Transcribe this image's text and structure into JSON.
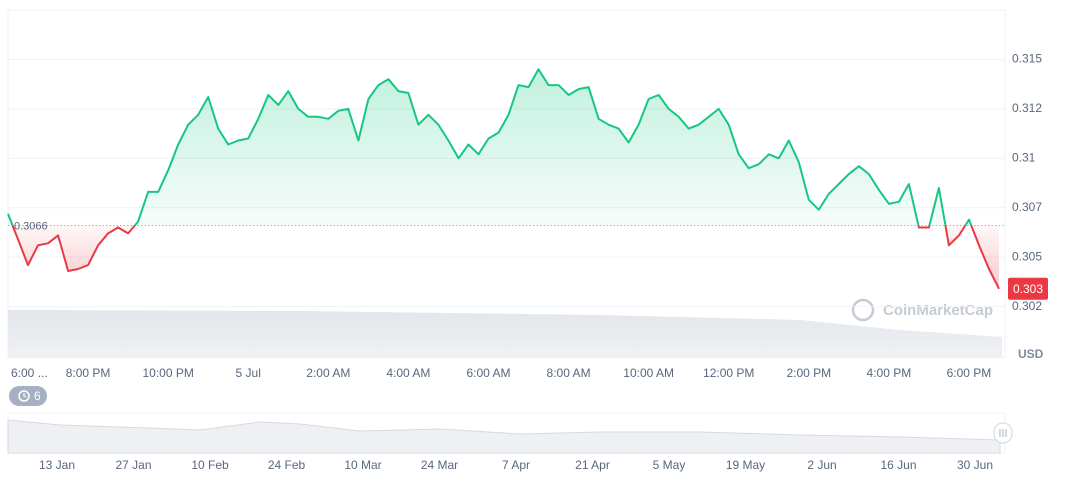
{
  "chart_data": {
    "type": "line",
    "y_unit": "USD",
    "watermark": "CoinMarketCap",
    "events_count": 6,
    "up_color": "#16c784",
    "down_color": "#ea3943",
    "grid": true,
    "baseline": {
      "value": 0.3066,
      "label": "0.3066"
    },
    "current_price": {
      "value": 0.3034,
      "label": "0.303"
    },
    "xlim": [
      0,
      24.9
    ],
    "ylim": [
      0.2999,
      0.3175
    ],
    "xticks": [
      {
        "value": 0,
        "label": "6:00 ..."
      },
      {
        "value": 2,
        "label": "8:00 PM"
      },
      {
        "value": 4,
        "label": "10:00 PM"
      },
      {
        "value": 6,
        "label": "5 Jul"
      },
      {
        "value": 8,
        "label": "2:00 AM"
      },
      {
        "value": 10,
        "label": "4:00 AM"
      },
      {
        "value": 12,
        "label": "6:00 AM"
      },
      {
        "value": 14,
        "label": "8:00 AM"
      },
      {
        "value": 16,
        "label": "10:00 AM"
      },
      {
        "value": 18,
        "label": "12:00 PM"
      },
      {
        "value": 20,
        "label": "2:00 PM"
      },
      {
        "value": 22,
        "label": "4:00 PM"
      },
      {
        "value": 24,
        "label": "6:00 PM"
      }
    ],
    "yticks": [
      {
        "value": 0.3025,
        "label": "0.302"
      },
      0.305,
      {
        "value": 0.3075,
        "label": "0.307"
      },
      0.31,
      {
        "value": 0.3125,
        "label": "0.312"
      },
      0.315
    ],
    "x": [
      0,
      0.25,
      0.5,
      0.75,
      1,
      1.25,
      1.5,
      1.75,
      2,
      2.25,
      2.5,
      2.75,
      3,
      3.25,
      3.5,
      3.75,
      4,
      4.25,
      4.5,
      4.75,
      5,
      5.25,
      5.5,
      5.75,
      6,
      6.25,
      6.5,
      6.75,
      7,
      7.25,
      7.5,
      7.75,
      8,
      8.25,
      8.5,
      8.75,
      9,
      9.25,
      9.5,
      9.75,
      10,
      10.25,
      10.5,
      10.75,
      11,
      11.25,
      11.5,
      11.75,
      12,
      12.25,
      12.5,
      12.75,
      13,
      13.25,
      13.5,
      13.75,
      14,
      14.25,
      14.5,
      14.75,
      15,
      15.25,
      15.5,
      15.75,
      16,
      16.25,
      16.5,
      16.75,
      17,
      17.25,
      17.5,
      17.75,
      18,
      18.25,
      18.5,
      18.75,
      19,
      19.25,
      19.5,
      19.75,
      20,
      20.25,
      20.5,
      20.75,
      21,
      21.25,
      21.5,
      21.75,
      22,
      22.25,
      22.5,
      22.75,
      23,
      23.25,
      23.5,
      23.75,
      24,
      24.25,
      24.5,
      24.75
    ],
    "values": [
      0.3072,
      0.3059,
      0.3046,
      0.3056,
      0.3057,
      0.3061,
      0.3043,
      0.3044,
      0.3046,
      0.3056,
      0.3062,
      0.3065,
      0.3062,
      0.3068,
      0.3083,
      0.3083,
      0.3094,
      0.3107,
      0.3117,
      0.3122,
      0.3131,
      0.3115,
      0.3107,
      0.3109,
      0.311,
      0.312,
      0.3132,
      0.3127,
      0.3134,
      0.3125,
      0.3121,
      0.3121,
      0.312,
      0.3124,
      0.3125,
      0.3109,
      0.313,
      0.3137,
      0.314,
      0.3134,
      0.3133,
      0.3117,
      0.3122,
      0.3117,
      0.3109,
      0.31,
      0.3107,
      0.3102,
      0.311,
      0.3113,
      0.3122,
      0.3137,
      0.3136,
      0.3145,
      0.3137,
      0.3137,
      0.3132,
      0.3135,
      0.3136,
      0.312,
      0.3117,
      0.3115,
      0.3108,
      0.3117,
      0.313,
      0.3132,
      0.3125,
      0.3121,
      0.3115,
      0.3117,
      0.3121,
      0.3125,
      0.3117,
      0.3102,
      0.3095,
      0.3097,
      0.3102,
      0.31,
      0.3109,
      0.3098,
      0.3079,
      0.3074,
      0.3082,
      0.3087,
      0.3092,
      0.3096,
      0.3092,
      0.3084,
      0.3077,
      0.3078,
      0.3087,
      0.3065,
      0.3065,
      0.3085,
      0.3056,
      0.3061,
      0.3069,
      0.3056,
      0.3044,
      0.3034
    ],
    "navigator_labels": [
      "13 Jan",
      "27 Jan",
      "10 Feb",
      "24 Feb",
      "10 Mar",
      "24 Mar",
      "7 Apr",
      "21 Apr",
      "5 May",
      "19 May",
      "2 Jun",
      "16 Jun",
      "30 Jun"
    ]
  }
}
